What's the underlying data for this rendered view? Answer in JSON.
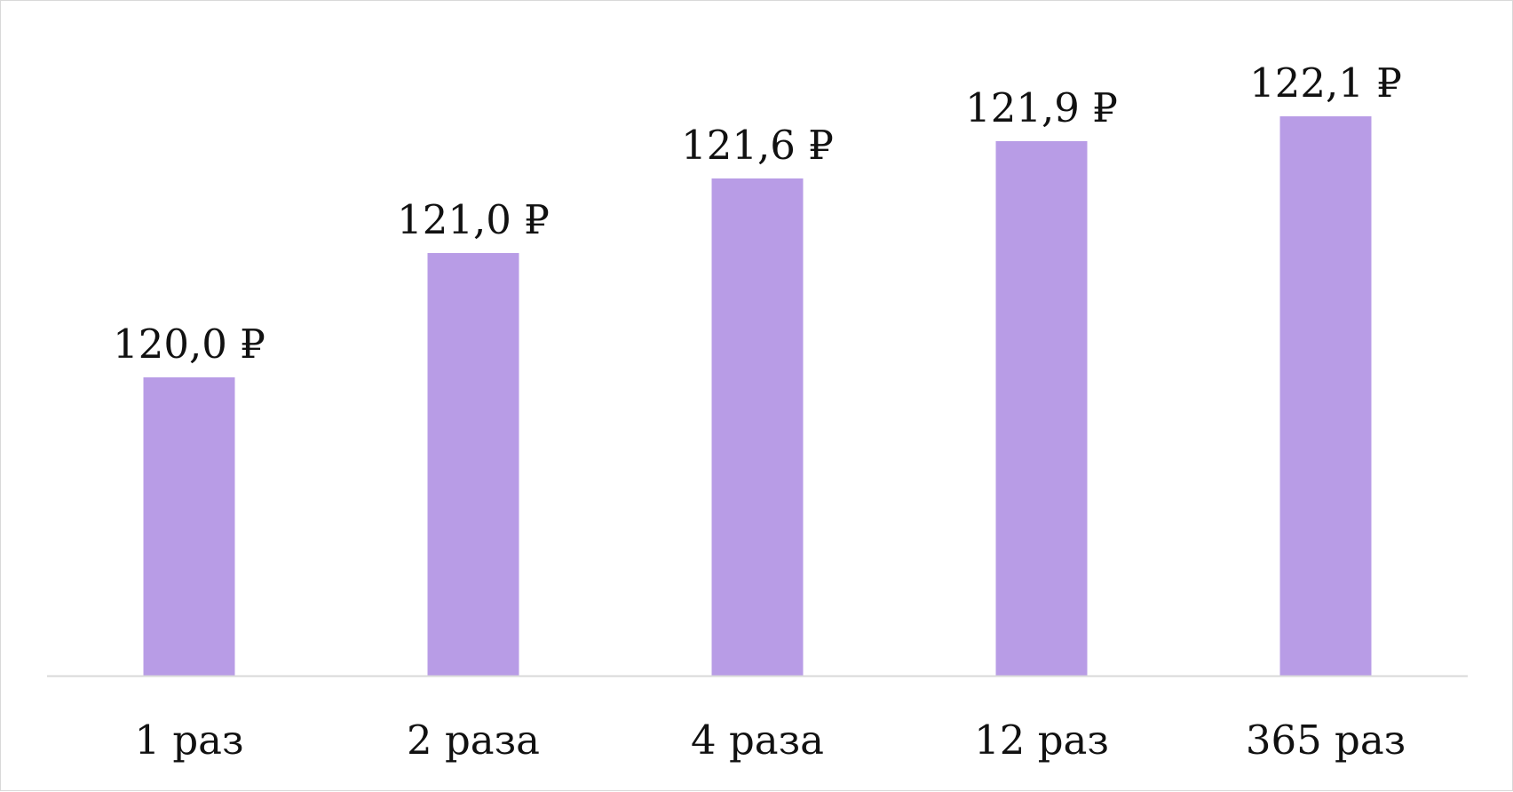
{
  "chart_data": {
    "type": "bar",
    "categories": [
      "1 раз",
      "2 раза",
      "4 раза",
      "12 раз",
      "365 раз"
    ],
    "values": [
      120.0,
      121.0,
      121.6,
      121.9,
      122.1
    ],
    "data_labels": [
      "120,0 ₽",
      "121,0 ₽",
      "121,6 ₽",
      "121,9 ₽",
      "122,1 ₽"
    ],
    "title": "",
    "xlabel": "",
    "ylabel": "",
    "ylim": [
      117.6,
      122.6
    ],
    "y_axis_visible": false,
    "grid": false,
    "legend": "none",
    "colors": {
      "bar": "#b89ce6",
      "axis": "#d9d9d9",
      "text": "#111111",
      "frame_border": "#d9d9d9"
    }
  }
}
